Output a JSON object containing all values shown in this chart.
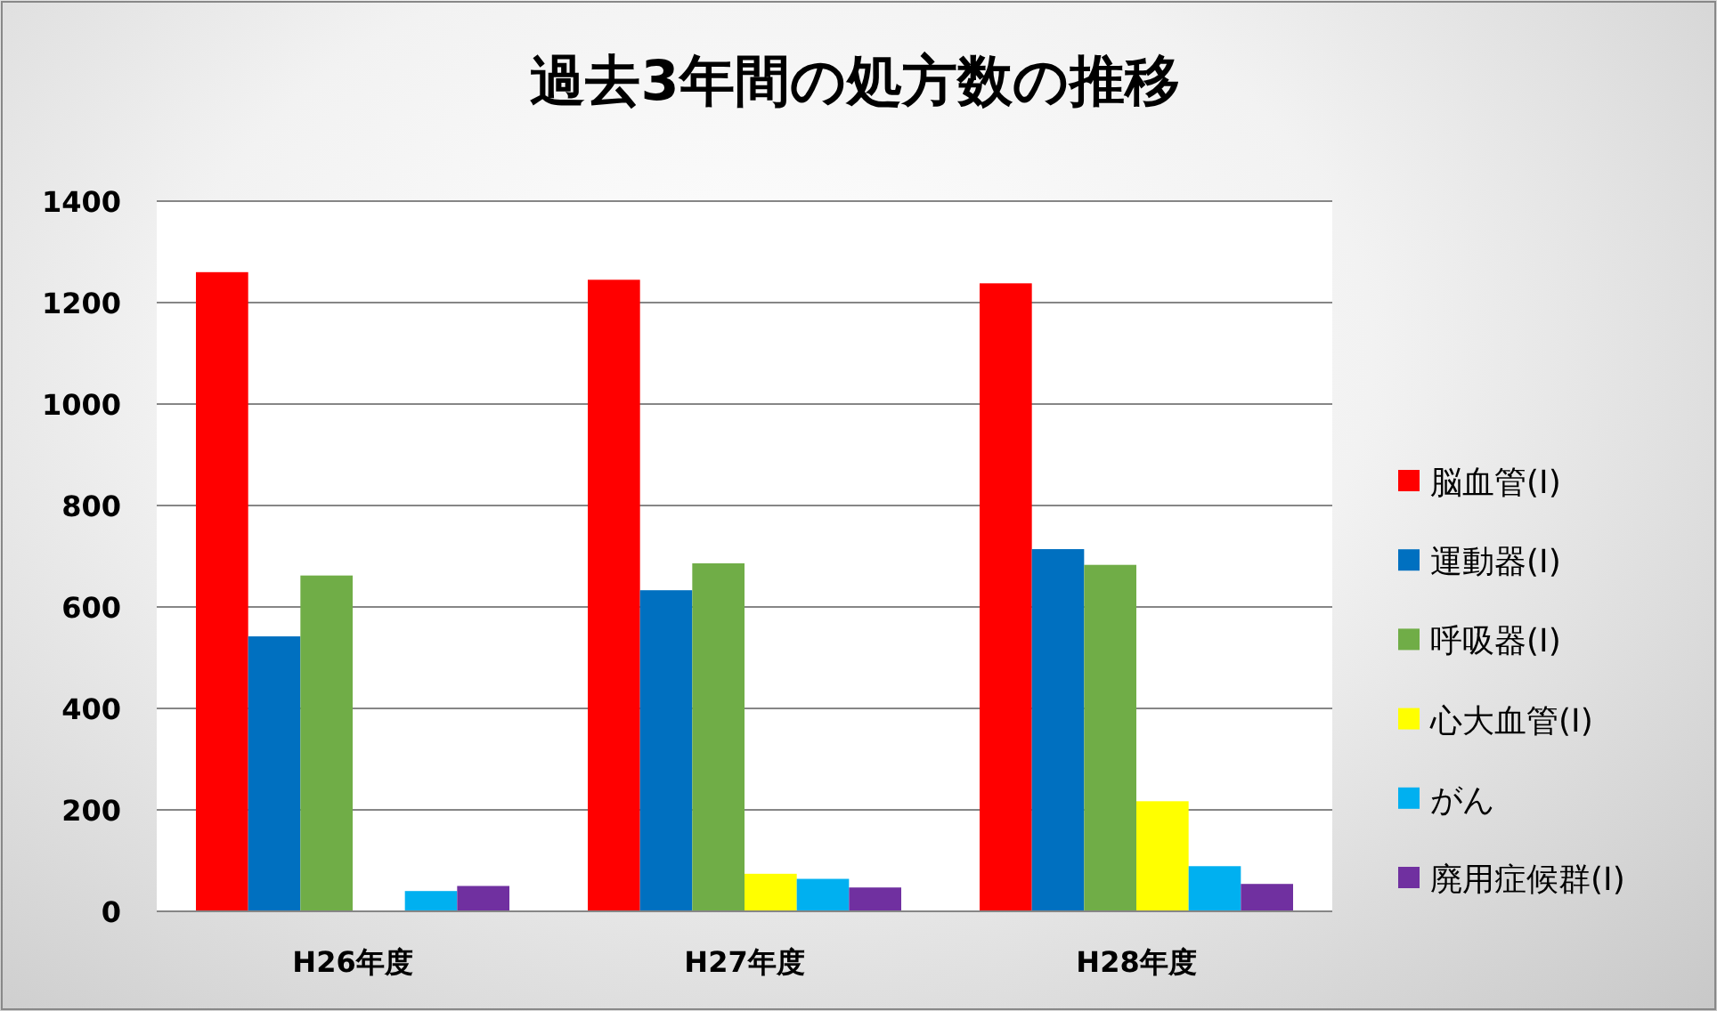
{
  "chart_data": {
    "type": "bar",
    "title": "過去3年間の処方数の推移",
    "categories": [
      "H26年度",
      "H27年度",
      "H28年度"
    ],
    "series": [
      {
        "name": "脳血管(Ⅰ)",
        "color": "#ff0000",
        "values": [
          1260,
          1245,
          1238
        ]
      },
      {
        "name": "運動器(Ⅰ)",
        "color": "#0070c0",
        "values": [
          542,
          633,
          714
        ]
      },
      {
        "name": "呼吸器(Ⅰ)",
        "color": "#70ad47",
        "values": [
          662,
          686,
          683
        ]
      },
      {
        "name": "心大血管(Ⅰ)",
        "color": "#ffff00",
        "values": [
          null,
          74,
          217
        ]
      },
      {
        "name": "がん",
        "color": "#00b0f0",
        "values": [
          40,
          64,
          89
        ]
      },
      {
        "name": "廃用症候群(Ⅰ)",
        "color": "#7030a0",
        "values": [
          50,
          47,
          54
        ]
      }
    ],
    "ylim": [
      0,
      1400
    ],
    "yticks": [
      0,
      200,
      400,
      600,
      800,
      1000,
      1200,
      1400
    ],
    "grid": "y",
    "legend": "right"
  }
}
